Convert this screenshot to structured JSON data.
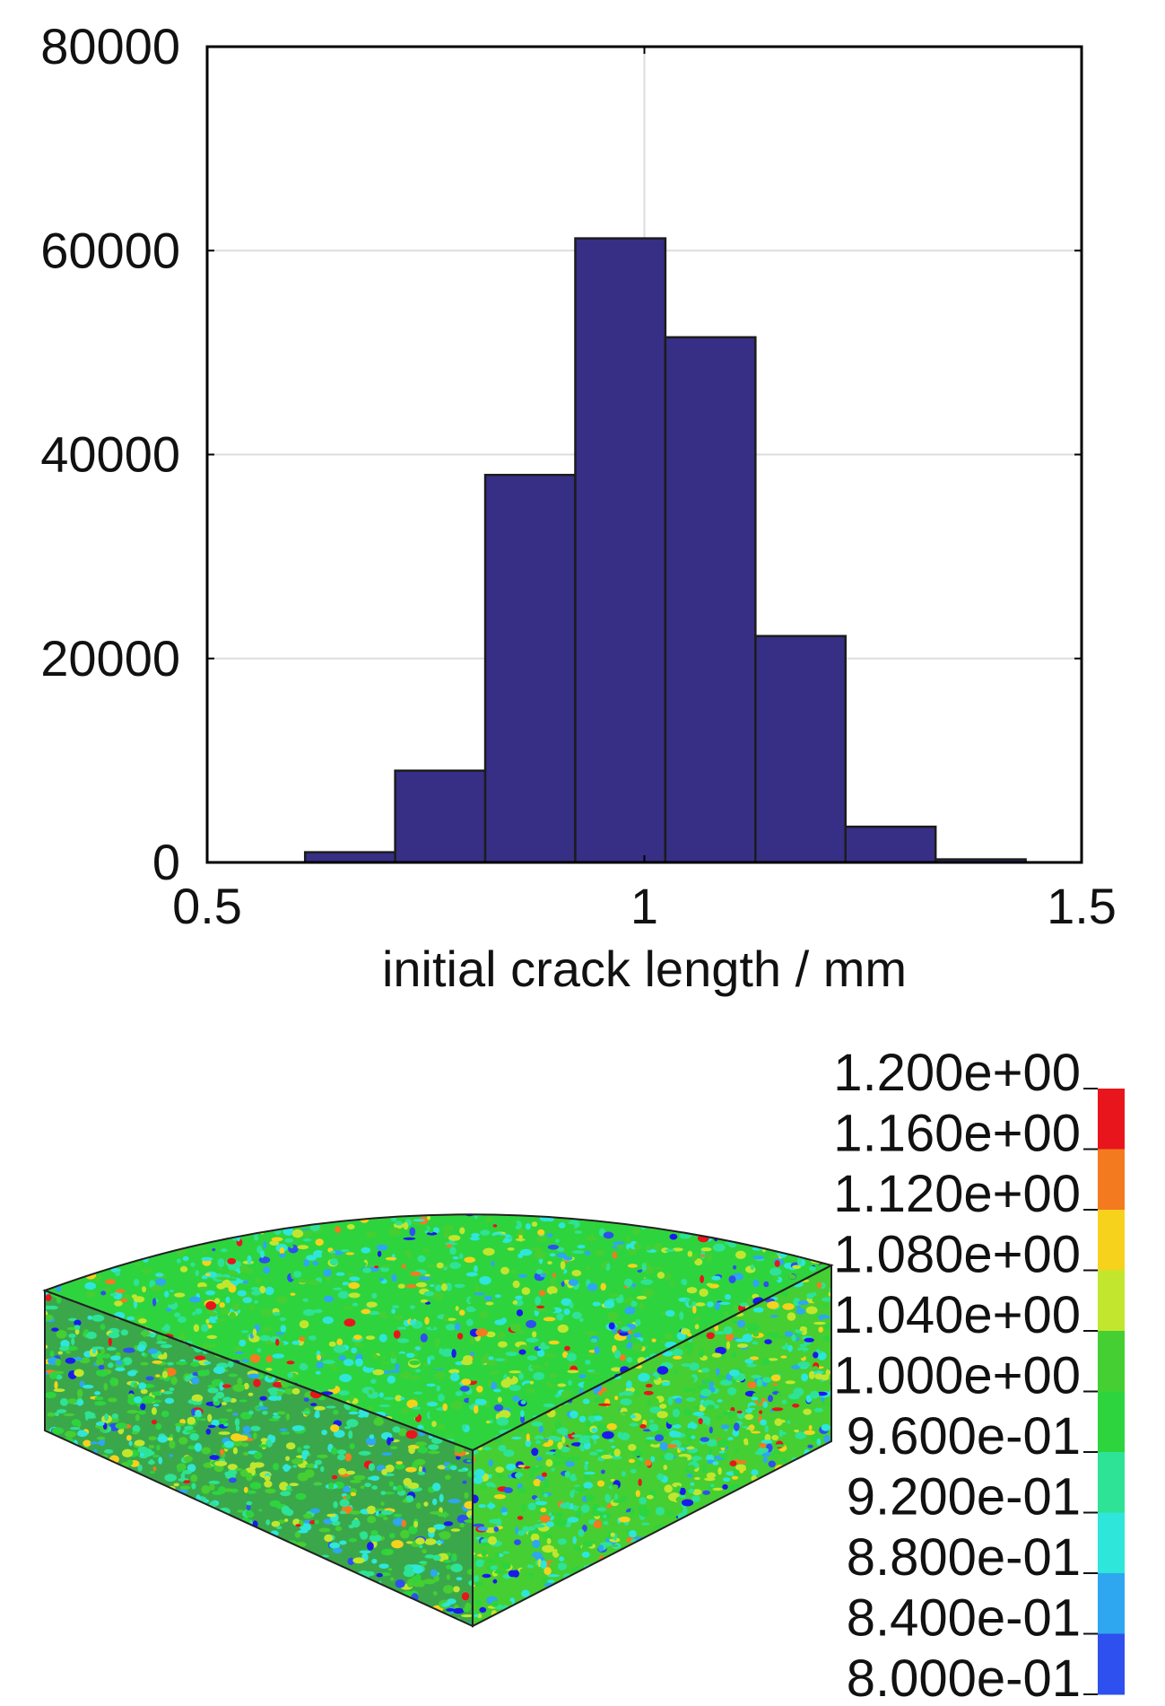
{
  "chart_data": [
    {
      "type": "bar",
      "subtype": "histogram",
      "title": "",
      "xlabel": "initial crack length / mm",
      "ylabel": "",
      "xlim": [
        0.5,
        1.5
      ],
      "ylim": [
        0,
        80000
      ],
      "xticks": [
        "0.5",
        "1",
        "1.5"
      ],
      "yticks": [
        "0",
        "20000",
        "40000",
        "60000",
        "80000"
      ],
      "bin_edges": [
        0.612,
        0.715,
        0.818,
        0.921,
        1.024,
        1.127,
        1.23,
        1.333,
        1.436
      ],
      "values": [
        1000,
        9000,
        38000,
        61200,
        51500,
        22200,
        3500,
        300
      ],
      "bar_color": "#372e86",
      "grid": true
    },
    {
      "type": "heatmap",
      "subtype": "3d-contour-plot",
      "legend_labels": [
        "1.200e+00",
        "1.160e+00",
        "1.120e+00",
        "1.080e+00",
        "1.040e+00",
        "1.000e+00",
        "9.600e-01",
        "9.200e-01",
        "8.800e-01",
        "8.400e-01",
        "8.000e-01"
      ],
      "legend_colors": [
        "#e8161c",
        "#f47a20",
        "#f7d21c",
        "#c2e62e",
        "#45cf32",
        "#2ed43e",
        "#2ee296",
        "#2ee6da",
        "#2ea6f0",
        "#2e50ee",
        "#1a1aef"
      ],
      "legend_placement": "right",
      "value_range": [
        0.8,
        1.2
      ]
    }
  ]
}
